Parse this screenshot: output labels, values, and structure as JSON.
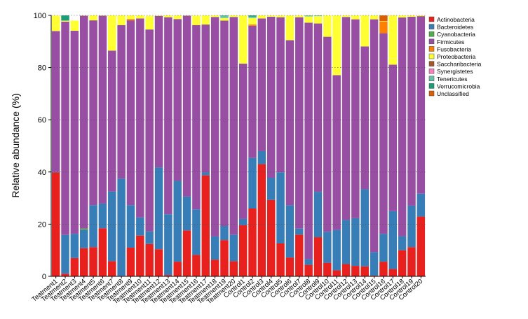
{
  "chart_data": {
    "type": "bar",
    "stacked": true,
    "ylabel": "Relative abundance (%)",
    "ylim": [
      0,
      100
    ],
    "yticks": [
      0,
      20,
      40,
      60,
      80,
      100
    ],
    "grid": "horizontal dotted",
    "legend_position": "right",
    "categories": [
      "Teatment1",
      "Teatment2",
      "Teatment3",
      "Teatment4",
      "Teatment5",
      "Teatment6",
      "Teatment7",
      "Teatment8",
      "Teatment9",
      "Teatment10",
      "Teatment11",
      "Teatment12",
      "Teatment13",
      "Teatment14",
      "Teatment15",
      "Teatment16",
      "Teatment17",
      "Teatment18",
      "Teatment19",
      "Teatment20",
      "Control1",
      "Control2",
      "Control3",
      "Control4",
      "Control5",
      "Control6",
      "Control7",
      "Control8",
      "Control9",
      "Control10",
      "Control11",
      "Control12",
      "Control13",
      "Control14",
      "Control15",
      "Control16",
      "Control17",
      "Control18",
      "Control19",
      "Control20"
    ],
    "series": [
      {
        "name": "Actinobacteria",
        "color": "#e8201e",
        "values": [
          39.8,
          1.0,
          7.0,
          10.8,
          11.2,
          18.4,
          5.8,
          0.2,
          11.0,
          15.6,
          12.4,
          10.4,
          0.5,
          5.6,
          17.6,
          8.2,
          38.7,
          6.4,
          13.9,
          5.8,
          19.6,
          26.0,
          43.0,
          29.3,
          12.6,
          7.2,
          16.0,
          4.4,
          15.0,
          5.2,
          2.3,
          4.7,
          4.0,
          3.8,
          0.3,
          5.6,
          2.8,
          10.0,
          11.2,
          22.9
        ]
      },
      {
        "name": "Bacteroidetes",
        "color": "#377eb8",
        "values": [
          0.2,
          14.9,
          9.3,
          7.0,
          16.1,
          9.5,
          26.7,
          37.3,
          16.3,
          7.0,
          4.8,
          31.4,
          23.3,
          31.0,
          13.0,
          17.5,
          1.1,
          8.9,
          5.4,
          10.2,
          2.4,
          19.4,
          5.0,
          8.5,
          27.3,
          20.1,
          2.3,
          2.2,
          17.4,
          11.9,
          15.5,
          16.9,
          18.3,
          29.6,
          9.0,
          10.7,
          22.2,
          5.4,
          15.9,
          8.8
        ]
      },
      {
        "name": "Cyanobacteria",
        "color": "#4daf4a",
        "values": [
          0,
          0,
          0,
          0.5,
          0,
          0,
          0,
          0,
          0,
          0,
          0,
          0,
          0,
          0,
          0,
          0,
          0,
          0,
          0,
          0,
          0,
          0,
          0,
          0,
          0,
          0,
          0,
          0,
          0,
          0,
          0,
          0,
          0,
          0,
          0,
          0,
          0,
          0,
          0,
          0
        ]
      },
      {
        "name": "Firmicutes",
        "color": "#984ea3",
        "values": [
          54.0,
          81.7,
          77.8,
          81.6,
          70.8,
          72.0,
          54.0,
          58.8,
          70.8,
          76.2,
          77.4,
          58.0,
          75.5,
          62.0,
          69.3,
          70.6,
          56.7,
          84.1,
          78.7,
          83.4,
          59.5,
          50.6,
          50.8,
          61.7,
          59.4,
          63.2,
          81.0,
          90.6,
          64.5,
          74.7,
          59.3,
          77.8,
          76.2,
          54.7,
          89.2,
          76.9,
          56.1,
          83.8,
          72.4,
          68.0
        ]
      },
      {
        "name": "Fusobacteria",
        "color": "#ff7f00",
        "values": [
          0,
          0,
          0,
          0,
          0,
          0,
          0,
          0,
          0.5,
          0,
          0,
          0,
          0,
          0,
          0,
          0,
          0,
          0,
          0,
          0,
          0,
          0.5,
          0,
          0,
          0,
          0,
          0,
          0,
          0,
          0,
          0,
          0,
          0,
          0,
          0,
          4.4,
          0,
          0,
          0,
          0
        ]
      },
      {
        "name": "Proteobacteria",
        "color": "#ffff33",
        "values": [
          5.9,
          0.4,
          3.9,
          0.1,
          1.9,
          0.1,
          13.5,
          3.7,
          1.4,
          1.2,
          5.2,
          0.2,
          0.7,
          1.4,
          0.1,
          3.6,
          3.5,
          0.6,
          1.0,
          0.6,
          18.5,
          2.5,
          1.2,
          0.5,
          0.7,
          9.5,
          0.7,
          2.4,
          2.8,
          8.2,
          22.9,
          0.6,
          1.5,
          11.9,
          1.5,
          0.2,
          18.9,
          0.8,
          0.5,
          0.3
        ]
      },
      {
        "name": "Saccharibacteria",
        "color": "#a65628",
        "values": [
          0,
          0,
          0,
          0,
          0,
          0,
          0,
          0,
          0,
          0,
          0,
          0,
          0,
          0,
          0,
          0,
          0,
          0,
          0,
          0,
          0,
          0,
          0,
          0,
          0,
          0,
          0,
          0,
          0,
          0,
          0,
          0,
          0,
          0,
          0,
          0,
          0,
          0,
          0,
          0
        ]
      },
      {
        "name": "Synergistetes",
        "color": "#f781bf",
        "values": [
          0,
          0,
          0,
          0,
          0,
          0,
          0,
          0,
          0,
          0,
          0,
          0,
          0,
          0,
          0,
          0,
          0,
          0,
          0,
          0,
          0,
          0,
          0,
          0,
          0,
          0,
          0,
          0,
          0,
          0,
          0,
          0,
          0,
          0,
          0,
          0,
          0,
          0,
          0,
          0
        ]
      },
      {
        "name": "Tenericutes",
        "color": "#66c2a5",
        "values": [
          0,
          0,
          0,
          0,
          0,
          0,
          0,
          0,
          0,
          0,
          0,
          0,
          0,
          0,
          0,
          0,
          0,
          0,
          0.8,
          0,
          0,
          0.5,
          0,
          0,
          0,
          0,
          0,
          0.4,
          0.3,
          0,
          0,
          0,
          0,
          0,
          0,
          0,
          0,
          0,
          0,
          0
        ]
      },
      {
        "name": "Verrucomicrobia",
        "color": "#1b9e77",
        "values": [
          0,
          2.0,
          0,
          0,
          0,
          0,
          0,
          0,
          0,
          0,
          0,
          0,
          0,
          0,
          0,
          0,
          0,
          0,
          0.2,
          0,
          0,
          0.5,
          0,
          0,
          0,
          0,
          0,
          0,
          0,
          0,
          0,
          0,
          0,
          0,
          0,
          0,
          0,
          0,
          0,
          0
        ]
      },
      {
        "name": "Unclassified",
        "color": "#d95f02",
        "values": [
          0,
          0,
          0,
          0,
          0,
          0,
          0,
          0,
          0,
          0,
          0,
          0,
          0,
          0,
          0,
          0,
          0,
          0,
          0,
          0,
          0,
          0,
          0,
          0,
          0,
          0,
          0,
          0,
          0,
          0,
          0,
          0,
          0,
          0,
          0,
          2.2,
          0,
          0,
          0,
          0
        ]
      }
    ]
  }
}
